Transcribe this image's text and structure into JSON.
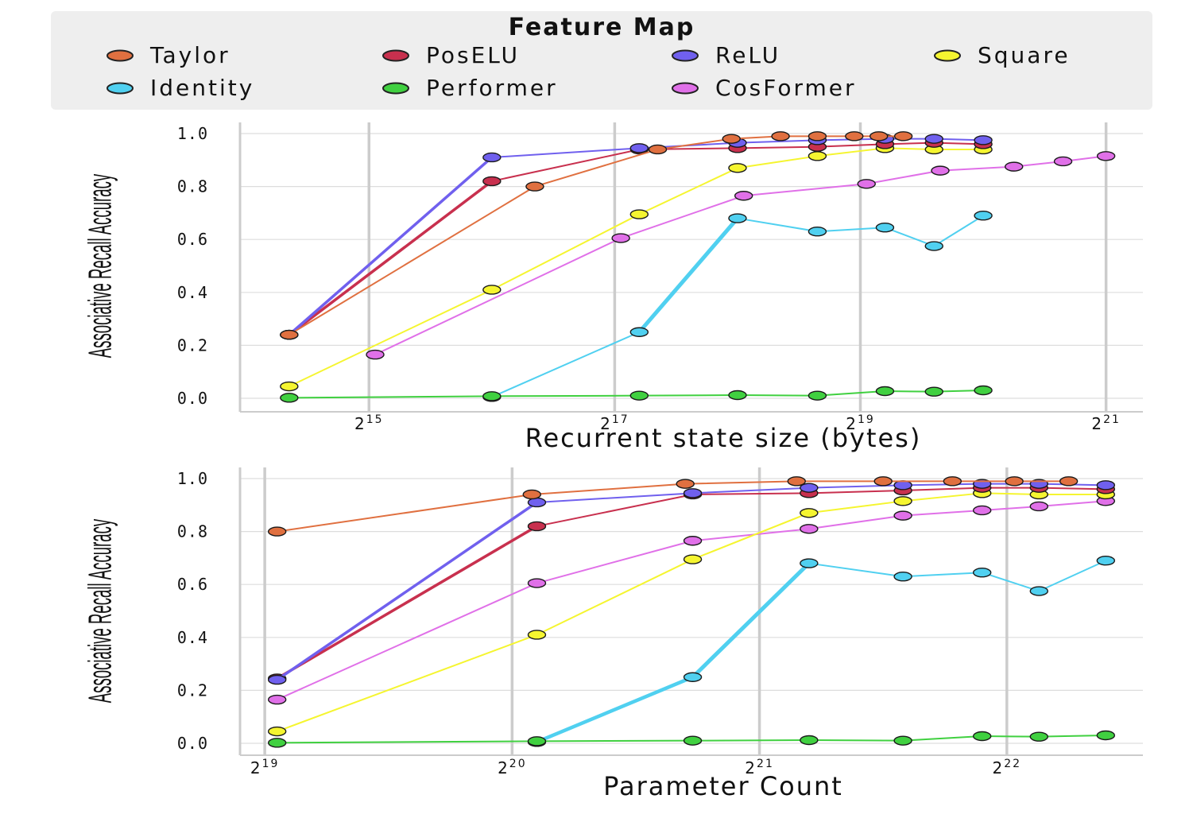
{
  "legend": {
    "title": "Feature Map",
    "entries": [
      {
        "name": "Taylor",
        "color": "#e07040"
      },
      {
        "name": "PosELU",
        "color": "#c8304e"
      },
      {
        "name": "ReLU",
        "color": "#7060ee"
      },
      {
        "name": "Square",
        "color": "#f5f530"
      },
      {
        "name": "Identity",
        "color": "#50d0f0"
      },
      {
        "name": "Performer",
        "color": "#40d040"
      },
      {
        "name": "CosFormer",
        "color": "#e070e8"
      }
    ]
  },
  "chart_data": [
    {
      "type": "line",
      "title": "",
      "xlabel": "Recurrent state size (bytes)",
      "ylabel": "Associative Recall Accuracy",
      "xscale": "log2",
      "xlim_log2": [
        13.95,
        21.3
      ],
      "ylim": [
        -0.05,
        1.05
      ],
      "xticks": [
        {
          "base": "2",
          "exp": "15",
          "log2": 15
        },
        {
          "base": "2",
          "exp": "17",
          "log2": 17
        },
        {
          "base": "2",
          "exp": "19",
          "log2": 19
        },
        {
          "base": "2",
          "exp": "21",
          "log2": 21
        }
      ],
      "yticks": [
        "0.0",
        "0.2",
        "0.4",
        "0.6",
        "0.8",
        "1.0"
      ],
      "series": [
        {
          "name": "Taylor",
          "x_log2": [
            14.35,
            16.35,
            17.35,
            17.95,
            18.35,
            18.65,
            18.95,
            19.15,
            19.35
          ],
          "y": [
            0.24,
            0.8,
            0.94,
            0.98,
            0.99,
            0.99,
            0.99,
            0.99,
            0.99
          ]
        },
        {
          "name": "PosELU",
          "x_log2": [
            14.35,
            16.0,
            17.2,
            18.0,
            18.65,
            19.2,
            19.6,
            20.0
          ],
          "y": [
            0.24,
            0.82,
            0.94,
            0.945,
            0.95,
            0.96,
            0.965,
            0.96
          ]
        },
        {
          "name": "ReLU",
          "x_log2": [
            14.35,
            16.0,
            17.2,
            18.0,
            18.65,
            19.2,
            19.6,
            20.0
          ],
          "y": [
            0.24,
            0.91,
            0.945,
            0.965,
            0.975,
            0.98,
            0.98,
            0.975
          ]
        },
        {
          "name": "Square",
          "x_log2": [
            14.35,
            16.0,
            17.2,
            18.0,
            18.65,
            19.2,
            19.6,
            20.0
          ],
          "y": [
            0.045,
            0.41,
            0.695,
            0.87,
            0.915,
            0.945,
            0.94,
            0.94
          ]
        },
        {
          "name": "Identity",
          "x_log2": [
            16.0,
            17.2,
            18.0,
            18.65,
            19.2,
            19.6,
            20.0
          ],
          "y": [
            0.005,
            0.25,
            0.68,
            0.63,
            0.645,
            0.575,
            0.69
          ]
        },
        {
          "name": "Performer",
          "x_log2": [
            14.35,
            16.0,
            17.2,
            18.0,
            18.65,
            19.2,
            19.6,
            20.0
          ],
          "y": [
            0.002,
            0.008,
            0.01,
            0.012,
            0.01,
            0.027,
            0.025,
            0.03
          ]
        },
        {
          "name": "CosFormer",
          "x_log2": [
            15.05,
            17.05,
            18.05,
            19.05,
            19.65,
            20.25,
            20.65,
            21.0
          ],
          "y": [
            0.165,
            0.605,
            0.765,
            0.81,
            0.86,
            0.875,
            0.895,
            0.915
          ]
        }
      ]
    },
    {
      "type": "line",
      "title": "",
      "xlabel": "Parameter Count",
      "ylabel": "Associative Recall Accuracy",
      "xscale": "log2",
      "xlim_log2": [
        18.9,
        22.55
      ],
      "ylim": [
        -0.05,
        1.05
      ],
      "xticks": [
        {
          "base": "2",
          "exp": "19",
          "log2": 19
        },
        {
          "base": "2",
          "exp": "20",
          "log2": 20
        },
        {
          "base": "2",
          "exp": "21",
          "log2": 21
        },
        {
          "base": "2",
          "exp": "22",
          "log2": 22
        }
      ],
      "yticks": [
        "0.0",
        "0.2",
        "0.4",
        "0.6",
        "0.8",
        "1.0"
      ],
      "series": [
        {
          "name": "Taylor",
          "x_log2": [
            19.05,
            20.08,
            20.7,
            21.15,
            21.5,
            21.78,
            22.03,
            22.25
          ],
          "y": [
            0.8,
            0.94,
            0.98,
            0.99,
            0.99,
            0.99,
            0.99,
            0.99
          ]
        },
        {
          "name": "PosELU",
          "x_log2": [
            19.05,
            20.1,
            20.73,
            21.2,
            21.58,
            21.9,
            22.13,
            22.4
          ],
          "y": [
            0.245,
            0.82,
            0.94,
            0.945,
            0.955,
            0.965,
            0.965,
            0.96
          ]
        },
        {
          "name": "ReLU",
          "x_log2": [
            19.05,
            20.1,
            20.73,
            21.2,
            21.58,
            21.9,
            22.13,
            22.4
          ],
          "y": [
            0.24,
            0.91,
            0.945,
            0.965,
            0.975,
            0.98,
            0.98,
            0.975
          ]
        },
        {
          "name": "Square",
          "x_log2": [
            19.05,
            20.1,
            20.73,
            21.2,
            21.58,
            21.9,
            22.13,
            22.4
          ],
          "y": [
            0.045,
            0.41,
            0.695,
            0.87,
            0.915,
            0.945,
            0.94,
            0.94
          ]
        },
        {
          "name": "Identity",
          "x_log2": [
            20.1,
            20.73,
            21.2,
            21.58,
            21.9,
            22.13,
            22.4
          ],
          "y": [
            0.005,
            0.25,
            0.68,
            0.63,
            0.645,
            0.575,
            0.69
          ]
        },
        {
          "name": "Performer",
          "x_log2": [
            19.05,
            20.1,
            20.73,
            21.2,
            21.58,
            21.9,
            22.13,
            22.4
          ],
          "y": [
            0.002,
            0.008,
            0.01,
            0.012,
            0.01,
            0.027,
            0.025,
            0.03
          ]
        },
        {
          "name": "CosFormer",
          "x_log2": [
            19.05,
            20.1,
            20.73,
            21.2,
            21.58,
            21.9,
            22.13,
            22.4
          ],
          "y": [
            0.165,
            0.605,
            0.765,
            0.81,
            0.86,
            0.88,
            0.895,
            0.915
          ]
        }
      ]
    }
  ]
}
